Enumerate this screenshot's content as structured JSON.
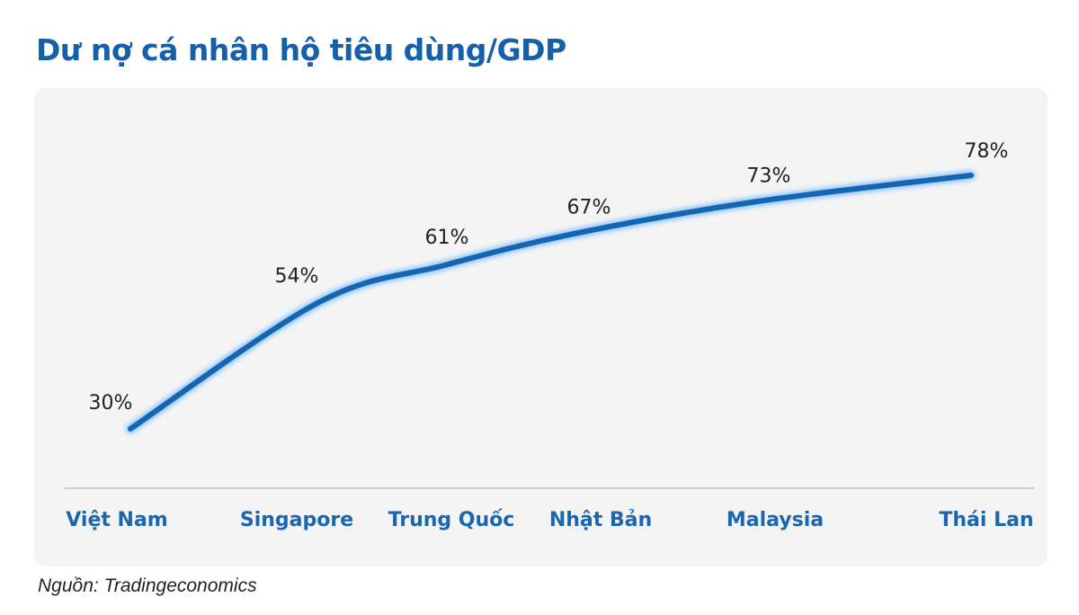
{
  "chart_data": {
    "type": "line",
    "title": "Dư nợ cá nhân hộ tiêu dùng/GDP",
    "categories": [
      "Việt Nam",
      "Singapore",
      "Trung Quốc",
      "Nhật Bản",
      "Malaysia",
      "Thái Lan"
    ],
    "values": [
      30,
      54,
      61,
      67,
      73,
      78
    ],
    "data_labels": [
      "30%",
      "54%",
      "61%",
      "67%",
      "73%",
      "78%"
    ],
    "xlabel": "",
    "ylabel": "",
    "unit": "%",
    "grid": false,
    "line_color": "#1565b0",
    "label_color": "#1b66b0"
  },
  "source": "Nguồn: Tradingeconomics"
}
